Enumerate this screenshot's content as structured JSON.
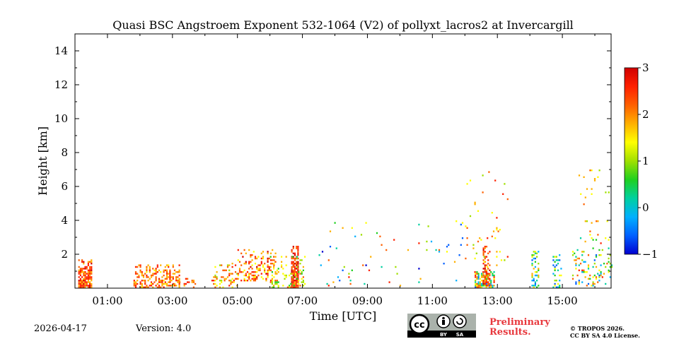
{
  "chart_data": {
    "type": "heatmap",
    "title": "Quasi BSC Angstroem Exponent 532-1064 (V2) of pollyxt_lacros2 at Invercargill",
    "xlabel": "Time [UTC]",
    "ylabel": "Height [km]",
    "xlim": [
      0,
      16.5
    ],
    "ylim": [
      0,
      15
    ],
    "x_ticks": [
      1,
      3,
      5,
      7,
      9,
      11,
      13,
      15
    ],
    "x_tick_labels": [
      "01:00",
      "03:00",
      "05:00",
      "07:00",
      "09:00",
      "11:00",
      "13:00",
      "15:00"
    ],
    "y_ticks": [
      2,
      4,
      6,
      8,
      10,
      12,
      14
    ],
    "y_tick_labels": [
      "2",
      "4",
      "6",
      "8",
      "10",
      "12",
      "14"
    ],
    "colorbar": {
      "min": -1,
      "max": 3,
      "ticks": [
        -1,
        0,
        1,
        2,
        3
      ],
      "tick_labels": [
        "−1",
        "0",
        "1",
        "2",
        "3"
      ],
      "colormap": [
        "#0000d0",
        "#0060ff",
        "#00b0ff",
        "#00d0a0",
        "#20d020",
        "#a0e000",
        "#ffff00",
        "#ffb000",
        "#ff6000",
        "#ff2000",
        "#d00000"
      ]
    },
    "features": [
      {
        "name": "aerosol-layer-0030",
        "t_start": 0.1,
        "t_end": 0.5,
        "h_start": 0.1,
        "h_end": 1.7,
        "value_range": [
          1.6,
          2.7
        ],
        "density": 0.9
      },
      {
        "name": "aerosol-layer-0130",
        "t_start": 1.8,
        "t_end": 3.2,
        "h_start": 0.1,
        "h_end": 1.4,
        "value_range": [
          1.5,
          2.6
        ],
        "density": 0.55
      },
      {
        "name": "aerosol-layer-0330",
        "t_start": 3.2,
        "t_end": 3.7,
        "h_start": 0.1,
        "h_end": 0.6,
        "value_range": [
          1.5,
          2.7
        ],
        "density": 0.4
      },
      {
        "name": "aerosol-layer-0430",
        "t_start": 4.2,
        "t_end": 5.0,
        "h_start": 0.1,
        "h_end": 1.6,
        "value_range": [
          1.0,
          2.7
        ],
        "density": 0.25
      },
      {
        "name": "aerosol-layer-0530",
        "t_start": 5.0,
        "t_end": 6.2,
        "h_start": 0.5,
        "h_end": 2.3,
        "value_range": [
          1.2,
          2.7
        ],
        "density": 0.35
      },
      {
        "name": "aerosol-column-0645",
        "t_start": 6.65,
        "t_end": 6.85,
        "h_start": 0.1,
        "h_end": 2.5,
        "value_range": [
          1.9,
          2.9
        ],
        "density": 0.95
      },
      {
        "name": "aerosol-layer-0630",
        "t_start": 6.0,
        "t_end": 7.1,
        "h_start": 0.1,
        "h_end": 1.9,
        "value_range": [
          0.4,
          2.2
        ],
        "density": 0.25
      },
      {
        "name": "scatter-0900",
        "t_start": 7.5,
        "t_end": 12.0,
        "h_start": 0.2,
        "h_end": 4.0,
        "value_range": [
          -0.8,
          2.5
        ],
        "density": 0.03
      },
      {
        "name": "aerosol-column-1230",
        "t_start": 12.3,
        "t_end": 12.9,
        "h_start": 0.1,
        "h_end": 1.0,
        "value_range": [
          -0.5,
          2.6
        ],
        "density": 0.7
      },
      {
        "name": "aerosol-column-1240",
        "t_start": 12.55,
        "t_end": 12.75,
        "h_start": 0.2,
        "h_end": 2.6,
        "value_range": [
          1.8,
          2.8
        ],
        "density": 0.6
      },
      {
        "name": "scatter-1300",
        "t_start": 12.0,
        "t_end": 13.3,
        "h_start": 1.0,
        "h_end": 7.0,
        "value_range": [
          1.0,
          2.5
        ],
        "density": 0.04
      },
      {
        "name": "aerosol-column-1400",
        "t_start": 14.05,
        "t_end": 14.25,
        "h_start": 0.1,
        "h_end": 2.2,
        "value_range": [
          -0.5,
          1.8
        ],
        "density": 0.5
      },
      {
        "name": "aerosol-column-1450",
        "t_start": 14.7,
        "t_end": 14.95,
        "h_start": 0.1,
        "h_end": 2.0,
        "value_range": [
          -0.6,
          1.5
        ],
        "density": 0.3
      },
      {
        "name": "aerosol-layer-1530",
        "t_start": 15.3,
        "t_end": 16.5,
        "h_start": 0.2,
        "h_end": 3.0,
        "value_range": [
          -0.5,
          2.5
        ],
        "density": 0.15
      },
      {
        "name": "scatter-1600",
        "t_start": 15.4,
        "t_end": 16.5,
        "h_start": 3.0,
        "h_end": 7.0,
        "value_range": [
          1.0,
          2.2
        ],
        "density": 0.03
      }
    ]
  },
  "footer": {
    "date": "2026-04-17",
    "version": "Version: 4.0",
    "preliminary_line1": "Preliminary",
    "preliminary_line2": "Results.",
    "copyright_line1": "© TROPOS 2026.",
    "copyright_line2": "CC BY SA 4.0 License.",
    "cc_badge": {
      "cc": "cc",
      "by": "BY",
      "sa": "SA"
    }
  }
}
